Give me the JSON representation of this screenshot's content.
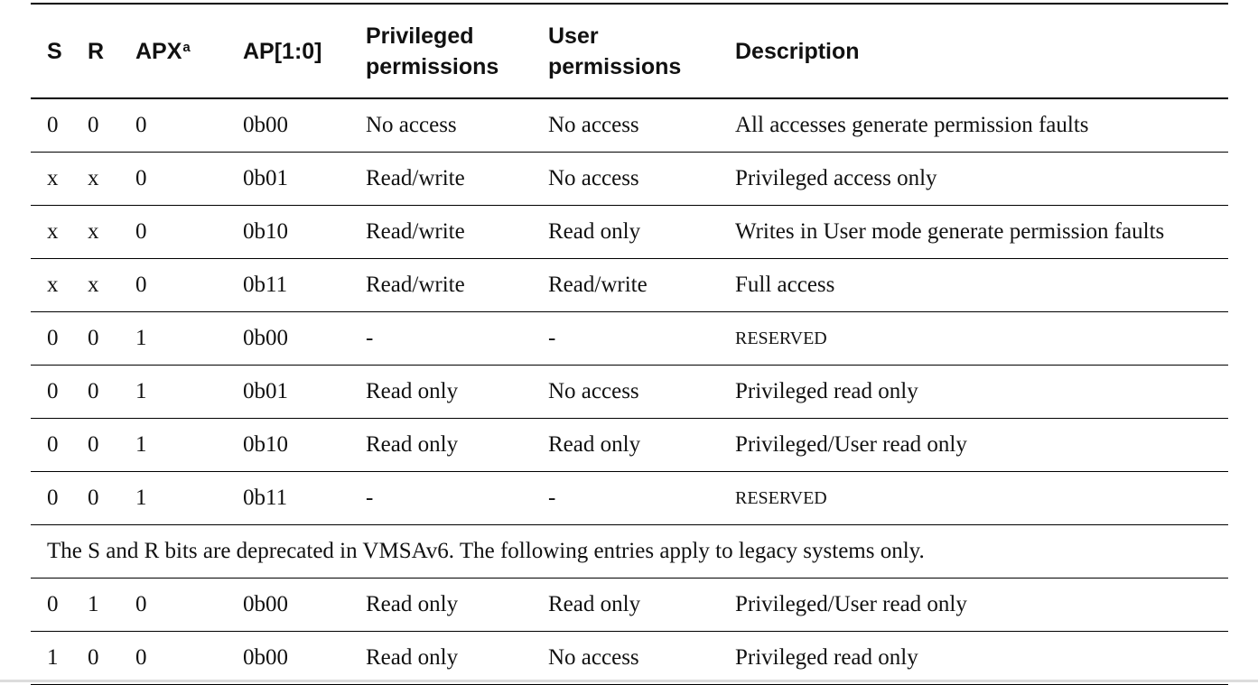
{
  "table": {
    "headers": {
      "s": "S",
      "r": "R",
      "apx": "APX",
      "apx_footnote": "a",
      "ap": "AP[1:0]",
      "priv_line1": "Privileged",
      "priv_line2": "permissions",
      "user_line1": "User",
      "user_line2": "permissions",
      "desc": "Description"
    },
    "rows": [
      {
        "s": "0",
        "r": "0",
        "apx": "0",
        "ap": "0b00",
        "priv": "No access",
        "user": "No access",
        "desc": "All accesses generate permission faults"
      },
      {
        "s": "x",
        "r": "x",
        "apx": "0",
        "ap": "0b01",
        "priv": "Read/write",
        "user": "No access",
        "desc": "Privileged access only"
      },
      {
        "s": "x",
        "r": "x",
        "apx": "0",
        "ap": "0b10",
        "priv": "Read/write",
        "user": "Read only",
        "desc": "Writes in User mode generate permission faults"
      },
      {
        "s": "x",
        "r": "x",
        "apx": "0",
        "ap": "0b11",
        "priv": "Read/write",
        "user": "Read/write",
        "desc": "Full access"
      },
      {
        "s": "0",
        "r": "0",
        "apx": "1",
        "ap": "0b00",
        "priv": "-",
        "user": "-",
        "desc": "RESERVED"
      },
      {
        "s": "0",
        "r": "0",
        "apx": "1",
        "ap": "0b01",
        "priv": "Read only",
        "user": "No access",
        "desc": "Privileged read only"
      },
      {
        "s": "0",
        "r": "0",
        "apx": "1",
        "ap": "0b10",
        "priv": "Read only",
        "user": "Read only",
        "desc": "Privileged/User read only"
      },
      {
        "s": "0",
        "r": "0",
        "apx": "1",
        "ap": "0b11",
        "priv": "-",
        "user": "-",
        "desc": "RESERVED"
      }
    ],
    "note": "The S and R bits are deprecated in VMSAv6. The following entries apply to legacy systems only.",
    "legacy_rows": [
      {
        "s": "0",
        "r": "1",
        "apx": "0",
        "ap": "0b00",
        "priv": "Read only",
        "user": "Read only",
        "desc": "Privileged/User read only"
      },
      {
        "s": "1",
        "r": "0",
        "apx": "0",
        "ap": "0b00",
        "priv": "Read only",
        "user": "No access",
        "desc": "Privileged read only"
      }
    ]
  }
}
